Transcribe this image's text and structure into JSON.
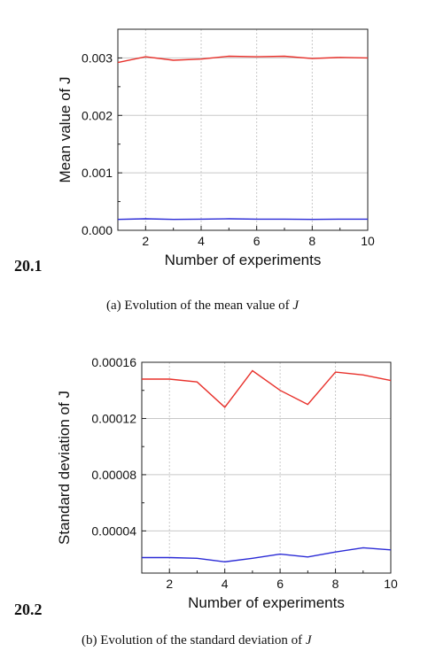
{
  "charts": {
    "top": {
      "figure_label": "20.1",
      "caption_text": "(a)  Evolution of the mean value of ",
      "caption_var": "J"
    },
    "bottom": {
      "figure_label": "20.2",
      "caption_text": "(b)  Evolution of the standard deviation of ",
      "caption_var": "J"
    }
  },
  "chart_data": [
    {
      "type": "line",
      "xlabel": "Number of experiments",
      "ylabel": "Mean value of J",
      "xlim": [
        1,
        10
      ],
      "ylim": [
        0,
        0.0035
      ],
      "xticks": [
        2,
        4,
        6,
        8,
        10
      ],
      "xtick_labels": [
        "2",
        "4",
        "6",
        "8",
        "10"
      ],
      "yticks": [
        0,
        0.001,
        0.002,
        0.003
      ],
      "ytick_labels": [
        "0.000",
        "0.001",
        "0.002",
        "0.003"
      ],
      "grid": true,
      "x": [
        1,
        2,
        3,
        4,
        5,
        6,
        7,
        8,
        9,
        10
      ],
      "series": [
        {
          "color": "#e8302a",
          "values": [
            0.00292,
            0.00302,
            0.00296,
            0.00298,
            0.00303,
            0.00302,
            0.00303,
            0.00299,
            0.00301,
            0.003
          ]
        },
        {
          "color": "#2a2ad6",
          "values": [
            0.00019,
            0.0002,
            0.00019,
            0.000195,
            0.0002,
            0.000195,
            0.000195,
            0.00019,
            0.000195,
            0.000195
          ]
        }
      ]
    },
    {
      "type": "line",
      "xlabel": "Number of experiments",
      "ylabel": "Standard deviation of J",
      "xlim": [
        1,
        10
      ],
      "ylim": [
        1e-05,
        0.00016
      ],
      "xticks": [
        2,
        4,
        6,
        8,
        10
      ],
      "xtick_labels": [
        "2",
        "4",
        "6",
        "8",
        "10"
      ],
      "yticks": [
        4e-05,
        8e-05,
        0.00012,
        0.00016
      ],
      "ytick_labels": [
        "0.00004",
        "0.00008",
        "0.00012",
        "0.00016"
      ],
      "grid": true,
      "x": [
        1,
        2,
        3,
        4,
        5,
        6,
        7,
        8,
        9,
        10
      ],
      "series": [
        {
          "color": "#e8302a",
          "values": [
            0.000148,
            0.000148,
            0.000146,
            0.000128,
            0.000154,
            0.00014,
            0.00013,
            0.000153,
            0.000151,
            0.000147
          ]
        },
        {
          "color": "#2a2ad6",
          "values": [
            2.1e-05,
            2.1e-05,
            2.05e-05,
            1.8e-05,
            2.05e-05,
            2.35e-05,
            2.15e-05,
            2.5e-05,
            2.8e-05,
            2.65e-05
          ]
        }
      ]
    }
  ]
}
